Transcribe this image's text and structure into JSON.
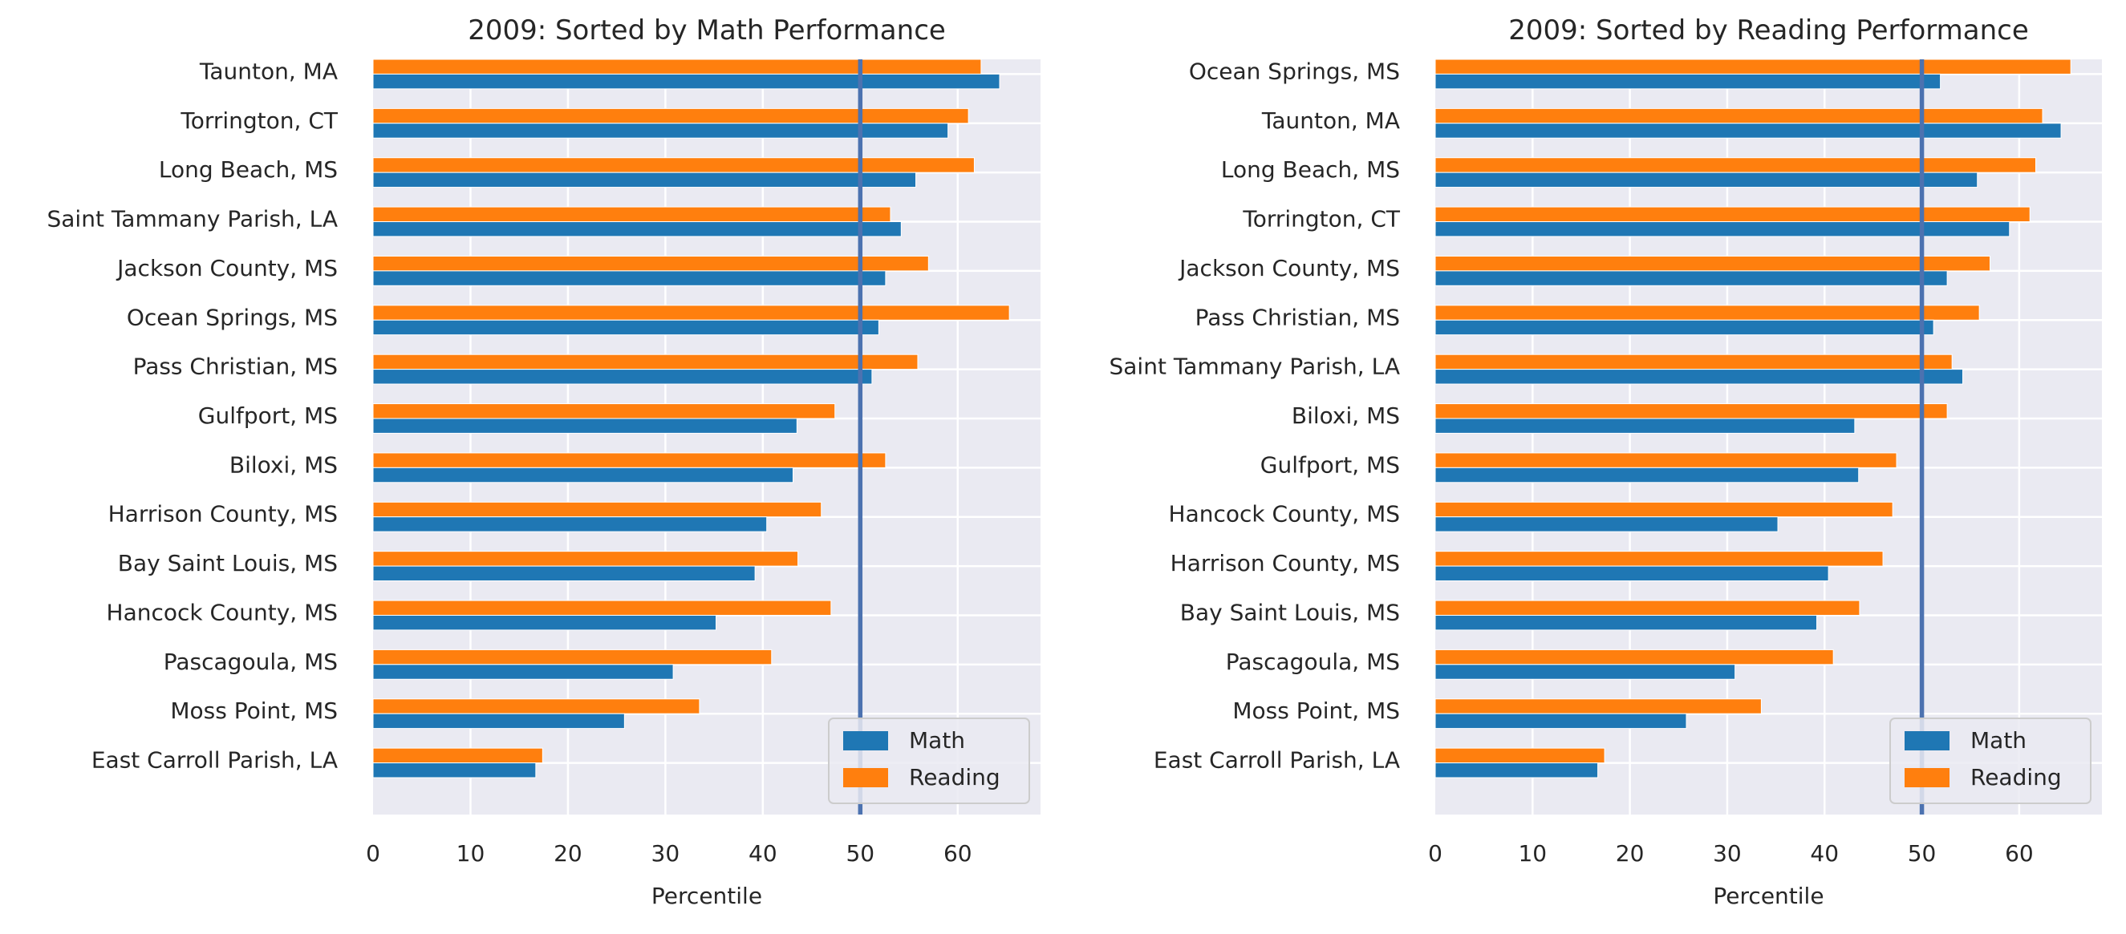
{
  "colors": {
    "math": "#1f77b4",
    "reading": "#ff7f0e",
    "refline": "#4c72b0",
    "plot_bg": "#eaeaf2",
    "grid": "#ffffff"
  },
  "chart_data": [
    {
      "type": "bar",
      "orientation": "horizontal",
      "title": "2009: Sorted by Math Performance",
      "xlabel": "Percentile",
      "ylabel": "",
      "xlim": [
        0,
        68.5
      ],
      "xticks": [
        0,
        10,
        20,
        30,
        40,
        50,
        60
      ],
      "reference_line_x": 50,
      "grid": true,
      "legend_position": "lower-right",
      "categories": [
        "Taunton, MA",
        "Torrington, CT",
        "Long Beach, MS",
        "Saint Tammany Parish, LA",
        "Jackson County, MS",
        "Ocean Springs, MS",
        "Pass Christian, MS",
        "Gulfport, MS",
        "Biloxi, MS",
        "Harrison County, MS",
        "Bay Saint Louis, MS",
        "Hancock County, MS",
        "Pascagoula, MS",
        "Moss Point, MS",
        "East Carroll Parish, LA"
      ],
      "series": [
        {
          "name": "Math",
          "values": [
            64.3,
            59.0,
            55.7,
            54.2,
            52.6,
            51.9,
            51.2,
            43.5,
            43.1,
            40.4,
            39.2,
            35.2,
            30.8,
            25.8,
            16.7
          ]
        },
        {
          "name": "Reading",
          "values": [
            62.4,
            61.1,
            61.7,
            53.1,
            57.0,
            65.3,
            55.9,
            47.4,
            52.6,
            46.0,
            43.6,
            47.0,
            40.9,
            33.5,
            17.4
          ]
        }
      ]
    },
    {
      "type": "bar",
      "orientation": "horizontal",
      "title": "2009: Sorted by Reading Performance",
      "xlabel": "Percentile",
      "ylabel": "",
      "xlim": [
        0,
        68.5
      ],
      "xticks": [
        0,
        10,
        20,
        30,
        40,
        50,
        60
      ],
      "reference_line_x": 50,
      "grid": true,
      "legend_position": "lower-right",
      "categories": [
        "Ocean Springs, MS",
        "Taunton, MA",
        "Long Beach, MS",
        "Torrington, CT",
        "Jackson County, MS",
        "Pass Christian, MS",
        "Saint Tammany Parish, LA",
        "Biloxi, MS",
        "Gulfport, MS",
        "Hancock County, MS",
        "Harrison County, MS",
        "Bay Saint Louis, MS",
        "Pascagoula, MS",
        "Moss Point, MS",
        "East Carroll Parish, LA"
      ],
      "series": [
        {
          "name": "Math",
          "values": [
            51.9,
            64.3,
            55.7,
            59.0,
            52.6,
            51.2,
            54.2,
            43.1,
            43.5,
            35.2,
            40.4,
            39.2,
            30.8,
            25.8,
            16.7
          ]
        },
        {
          "name": "Reading",
          "values": [
            65.3,
            62.4,
            61.7,
            61.1,
            57.0,
            55.9,
            53.1,
            52.6,
            47.4,
            47.0,
            46.0,
            43.6,
            40.9,
            33.5,
            17.4
          ]
        }
      ]
    }
  ]
}
